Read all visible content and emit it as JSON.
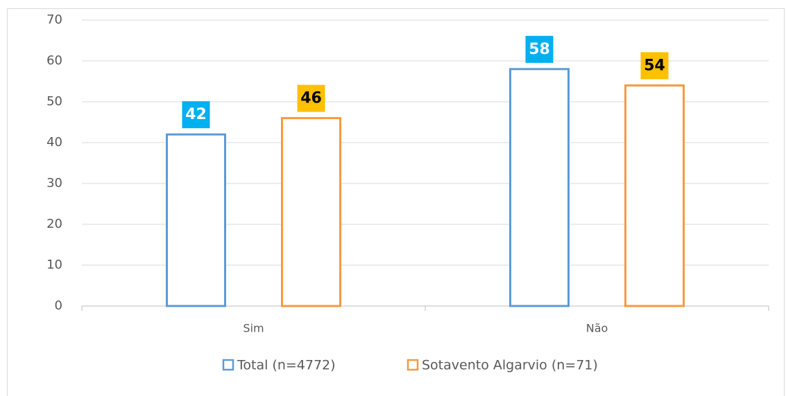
{
  "chart_data": {
    "type": "bar",
    "categories": [
      "Sim",
      "Não"
    ],
    "series": [
      {
        "name": "Total (n=4772)",
        "color": "#5b9bd5",
        "label_color": "#00b0f0",
        "label_text_color": "#ffffff",
        "values": [
          42,
          58
        ]
      },
      {
        "name": "Sotavento Algarvio (n=71)",
        "color": "#f79a3e",
        "label_color": "#ffc000",
        "label_text_color": "#000000",
        "values": [
          46,
          54
        ]
      }
    ],
    "ylim": [
      0,
      70
    ],
    "yticks": [
      0,
      10,
      20,
      30,
      40,
      50,
      60,
      70
    ],
    "grid": true,
    "legend": "bottom"
  }
}
